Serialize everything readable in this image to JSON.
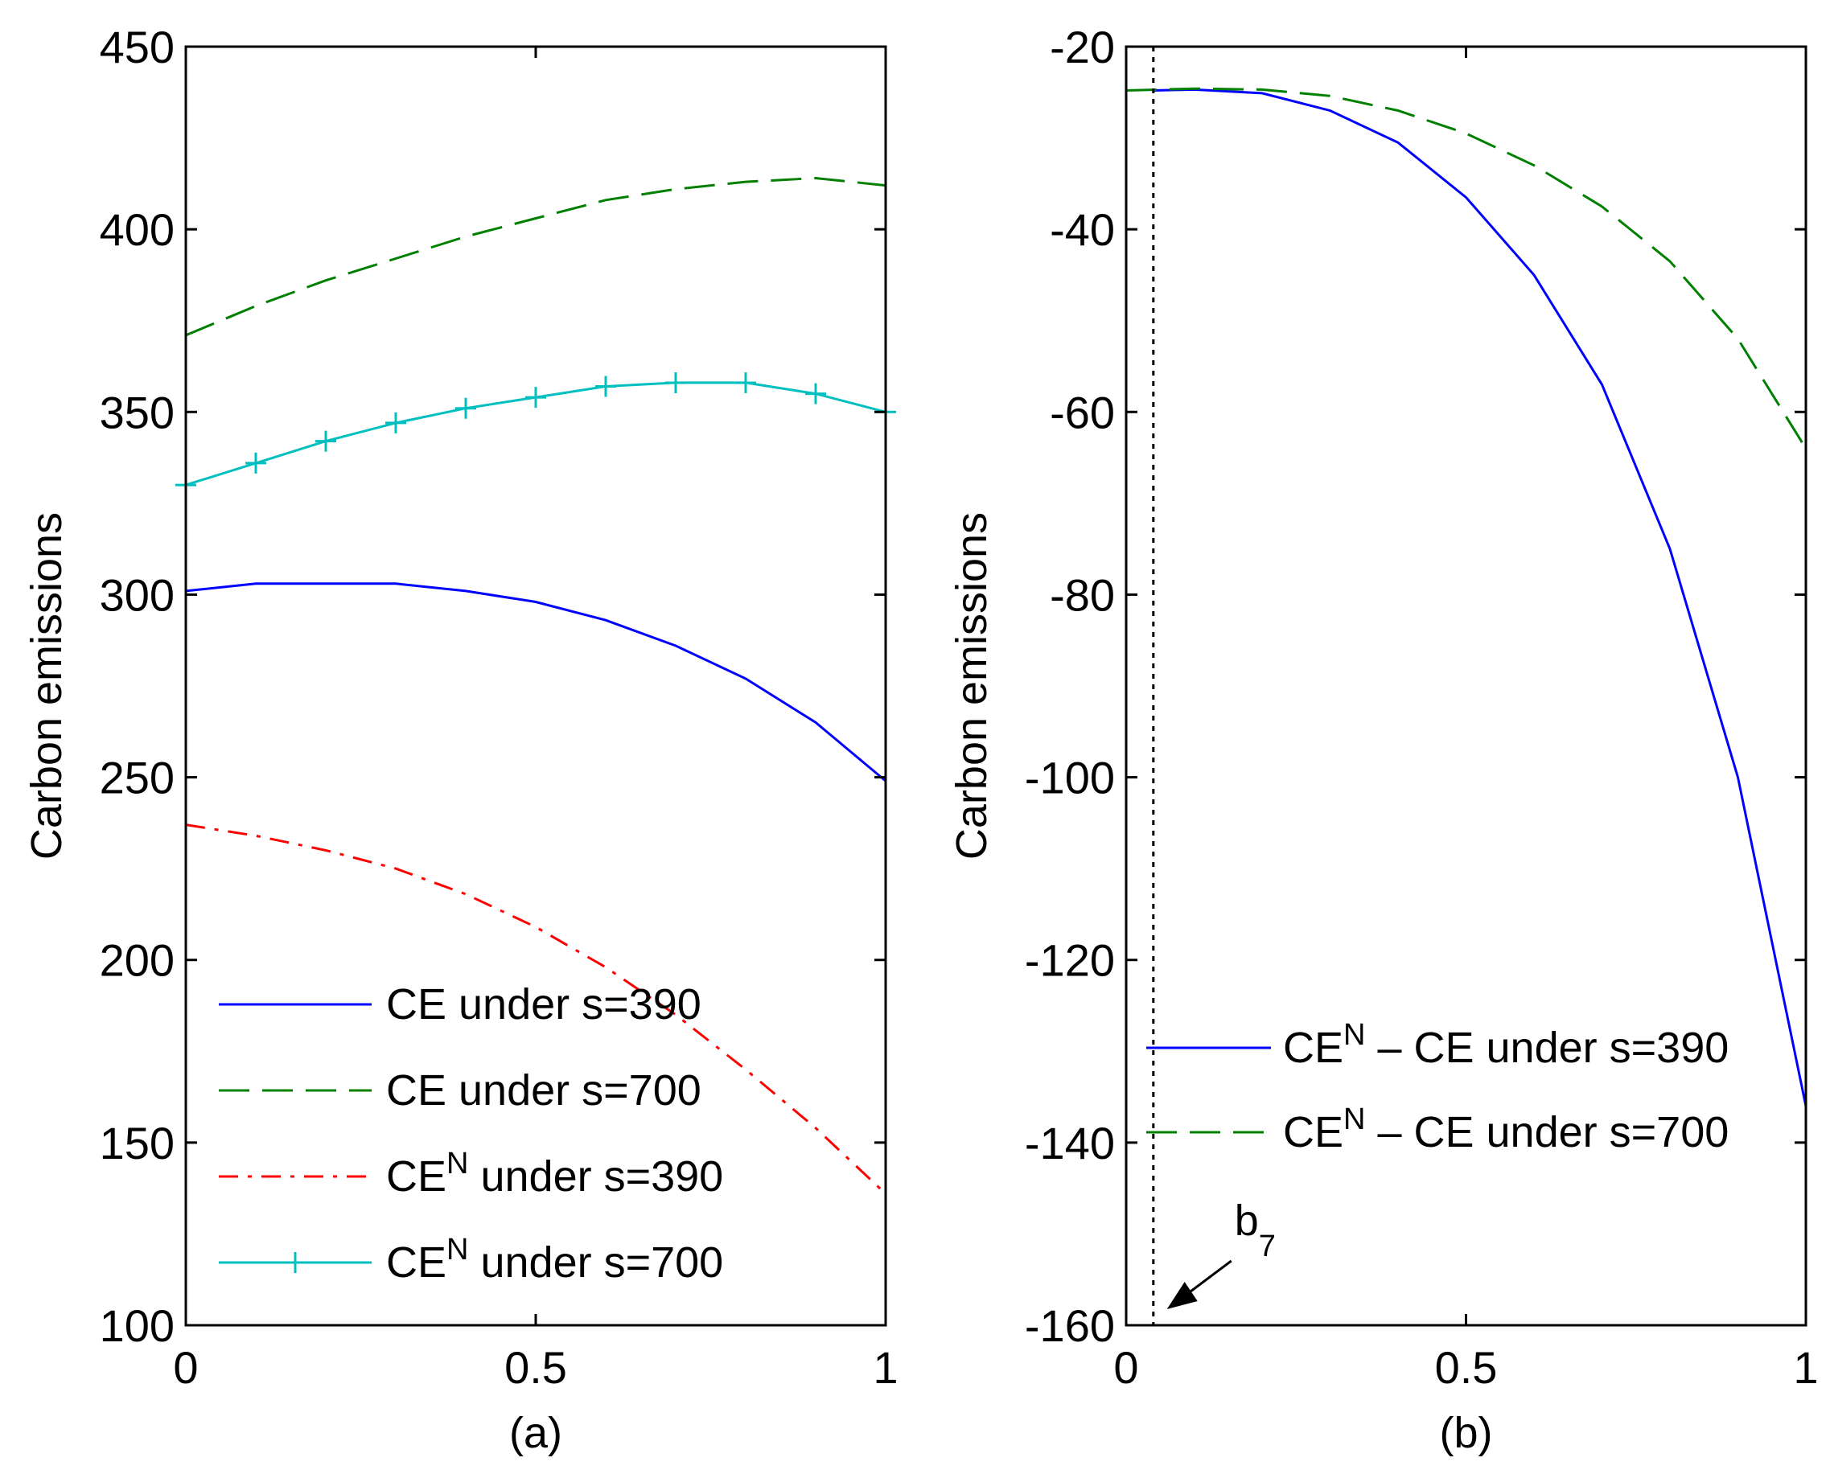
{
  "chart_data": [
    {
      "type": "line",
      "panel": "(a)",
      "xlabel": "(a)",
      "ylabel": "Carbon emissions",
      "xlim": [
        0,
        1
      ],
      "ylim": [
        100,
        450
      ],
      "xticks": [
        0,
        0.5,
        1
      ],
      "xtick_labels": [
        "0",
        "0.5",
        "1"
      ],
      "yticks": [
        100,
        150,
        200,
        250,
        300,
        350,
        400,
        450
      ],
      "ytick_labels": [
        "100",
        "150",
        "200",
        "250",
        "300",
        "350",
        "400",
        "450"
      ],
      "grid": false,
      "legend_position": "bottom-left",
      "series": [
        {
          "name": "CE under s=390",
          "legend": {
            "main": "CE under s=390"
          },
          "color": "#0000ff",
          "style": "solid",
          "x": [
            0,
            0.1,
            0.2,
            0.3,
            0.4,
            0.5,
            0.6,
            0.7,
            0.8,
            0.9,
            1.0
          ],
          "y": [
            301,
            303,
            303,
            303,
            301,
            298,
            293,
            286,
            277,
            265,
            249
          ]
        },
        {
          "name": "CE under s=700",
          "legend": {
            "main": "CE under s=700"
          },
          "color": "#008000",
          "style": "dashed",
          "x": [
            0,
            0.1,
            0.2,
            0.3,
            0.4,
            0.5,
            0.6,
            0.7,
            0.8,
            0.9,
            1.0
          ],
          "y": [
            371,
            379,
            386,
            392,
            398,
            403,
            408,
            411,
            413,
            414,
            412
          ]
        },
        {
          "name": "CE^N under s=390",
          "legend": {
            "main": "CE",
            "sup": "N",
            "rest": " under s=390"
          },
          "color": "#ff0000",
          "style": "dashdot",
          "x": [
            0,
            0.1,
            0.2,
            0.3,
            0.4,
            0.5,
            0.6,
            0.7,
            0.8,
            0.9,
            1.0
          ],
          "y": [
            237,
            234,
            230,
            225,
            218,
            209,
            198,
            185,
            170,
            154,
            136
          ]
        },
        {
          "name": "CE^N under s=700",
          "legend": {
            "main": "CE",
            "sup": "N",
            "rest": " under s=700"
          },
          "color": "#00bfbf",
          "style": "solid-plus",
          "x": [
            0,
            0.1,
            0.2,
            0.3,
            0.4,
            0.5,
            0.6,
            0.7,
            0.8,
            0.9,
            1.0
          ],
          "y": [
            330,
            336,
            342,
            347,
            351,
            354,
            357,
            358,
            358,
            355,
            350
          ]
        }
      ]
    },
    {
      "type": "line",
      "panel": "(b)",
      "xlabel": "(b)",
      "ylabel": "Carbon emissions",
      "xlim": [
        0,
        1
      ],
      "ylim": [
        -160,
        -20
      ],
      "xticks": [
        0,
        0.5,
        1
      ],
      "xtick_labels": [
        "0",
        "0.5",
        "1"
      ],
      "yticks": [
        -160,
        -140,
        -120,
        -100,
        -80,
        -60,
        -40,
        -20
      ],
      "ytick_labels": [
        "-160",
        "-140",
        "-120",
        "-100",
        "-80",
        "-60",
        "-40",
        "-20"
      ],
      "grid": false,
      "legend_position": "bottom-right",
      "series": [
        {
          "name": "CE^N – CE under s=390",
          "legend": {
            "main": "CE",
            "sup": "N",
            "rest": " – CE under s=390"
          },
          "color": "#0000ff",
          "style": "solid",
          "x": [
            0.04,
            0.1,
            0.2,
            0.3,
            0.4,
            0.5,
            0.6,
            0.7,
            0.8,
            0.9,
            1.0
          ],
          "y": [
            -24.8,
            -24.7,
            -25.1,
            -27.0,
            -30.5,
            -36.5,
            -45.0,
            -57.0,
            -75.0,
            -100.0,
            -136.0
          ]
        },
        {
          "name": "CE^N – CE under s=700",
          "legend": {
            "main": "CE",
            "sup": "N",
            "rest": " – CE under s=700"
          },
          "color": "#008000",
          "style": "dashed",
          "x": [
            0,
            0.1,
            0.2,
            0.3,
            0.4,
            0.5,
            0.6,
            0.7,
            0.8,
            0.9,
            1.0
          ],
          "y": [
            -24.8,
            -24.6,
            -24.7,
            -25.4,
            -27.0,
            -29.5,
            -33.0,
            -37.5,
            -43.5,
            -52.0,
            -64.0
          ]
        }
      ],
      "annotations": [
        {
          "type": "vline",
          "x": 0.04,
          "style": "dotted",
          "color": "#000000"
        },
        {
          "type": "arrow",
          "label_main": "b",
          "label_sub": "7"
        }
      ]
    }
  ]
}
